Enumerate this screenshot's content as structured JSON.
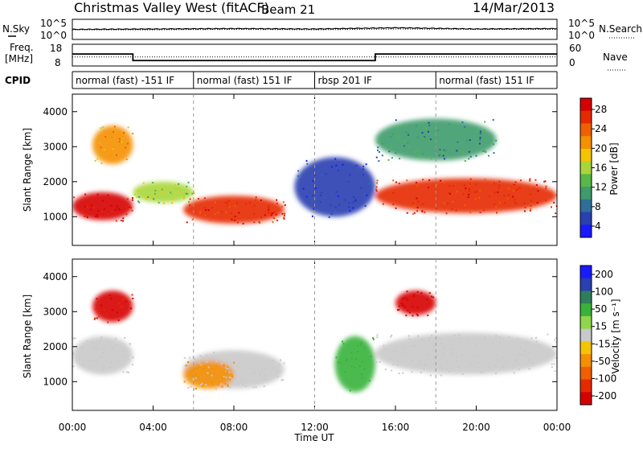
{
  "header": {
    "title": "Christmas Valley West (fitACF)",
    "beam": "Beam 21",
    "date": "14/Mar/2013"
  },
  "colors": {
    "power_scale": [
      "#1a1aff",
      "#2a3fb0",
      "#2e6e9a",
      "#3e9b6b",
      "#57b848",
      "#a8d63a",
      "#f5c400",
      "#f59000",
      "#f06000",
      "#e62a00",
      "#d60000"
    ],
    "velocity_scale": [
      "#1a1aff",
      "#2a3fb0",
      "#2e7e5a",
      "#39b23a",
      "#8fd64a",
      "#c9c9c9",
      "#f5c400",
      "#f59000",
      "#f06000",
      "#e62a00",
      "#d60000"
    ]
  },
  "chart_data": [
    {
      "type": "line",
      "panel": "noise",
      "left_label": "N.Sky",
      "right_label": "N.Search",
      "left_ticks": [
        "10^5",
        "10^0"
      ],
      "right_ticks": [
        "10^5",
        "10^0"
      ],
      "x": [
        "00:00",
        "04:00",
        "08:00",
        "12:00",
        "16:00",
        "20:00",
        "00:00"
      ],
      "series": [
        {
          "name": "N.Sky",
          "values": [
            2.5,
            2.6,
            2.7,
            2.6,
            2.9,
            2.6,
            2.7
          ]
        },
        {
          "name": "N.Search",
          "values": [
            2.4,
            2.4,
            2.5,
            2.4,
            2.6,
            2.5,
            2.5
          ]
        }
      ]
    },
    {
      "type": "line",
      "panel": "frequency",
      "left_label": [
        "Freq.",
        "[MHz]"
      ],
      "right_label": "Nave",
      "left_ticks": [
        "18",
        "8"
      ],
      "right_ticks": [
        "60",
        "0"
      ],
      "freq_steps": [
        {
          "start": "00:00",
          "end": "03:00",
          "value": 13.5
        },
        {
          "start": "03:00",
          "end": "15:00",
          "value": 10.5
        },
        {
          "start": "15:00",
          "end": "24:00",
          "value": 13.5
        }
      ],
      "nave": 25
    },
    {
      "type": "table",
      "panel": "cpid",
      "label": "CPID",
      "segments": [
        {
          "start": "00:00",
          "end": "06:00",
          "label": "normal (fast) -151 IF"
        },
        {
          "start": "06:00",
          "end": "12:00",
          "label": "normal (fast) 151 IF"
        },
        {
          "start": "12:00",
          "end": "18:00",
          "label": "rbsp 201 IF"
        },
        {
          "start": "18:00",
          "end": "24:00",
          "label": "normal (fast) 151 IF"
        }
      ]
    },
    {
      "type": "heatmap",
      "panel": "power",
      "ylabel": "Slant Range [km]",
      "y_ticks": [
        "1000",
        "2000",
        "3000",
        "4000"
      ],
      "ylim": [
        180,
        4500
      ],
      "colorbar_label": "Power [dB]",
      "colorbar_ticks": [
        "4",
        "8",
        "12",
        "16",
        "20",
        "24",
        "28"
      ],
      "blobs": [
        {
          "t0": 0.0,
          "t1": 3.0,
          "r0": 900,
          "r1": 1700,
          "value": 28
        },
        {
          "t0": 1.0,
          "t1": 3.0,
          "r0": 2500,
          "r1": 3600,
          "value": 18
        },
        {
          "t0": 3.0,
          "t1": 6.0,
          "r0": 1400,
          "r1": 2000,
          "value": 14
        },
        {
          "t0": 5.5,
          "t1": 10.5,
          "r0": 800,
          "r1": 1600,
          "value": 26
        },
        {
          "t0": 11.0,
          "t1": 15.0,
          "r0": 1000,
          "r1": 2700,
          "value": 6
        },
        {
          "t0": 15.0,
          "t1": 24.0,
          "r0": 1100,
          "r1": 2100,
          "value": 26
        },
        {
          "t0": 15.0,
          "t1": 21.0,
          "r0": 2600,
          "r1": 3800,
          "value": 10
        }
      ]
    },
    {
      "type": "heatmap",
      "panel": "velocity",
      "ylabel": "Slant Range [km]",
      "y_ticks": [
        "1000",
        "2000",
        "3000",
        "4000"
      ],
      "ylim": [
        180,
        4500
      ],
      "colorbar_label": "Velocity [m s⁻¹]",
      "colorbar_ticks": [
        "200",
        "100",
        "50",
        "15",
        "-15",
        "-50",
        "-100",
        "-200"
      ],
      "xlabel": "Time UT",
      "x_ticks": [
        "00:00",
        "04:00",
        "08:00",
        "12:00",
        "16:00",
        "20:00",
        "00:00"
      ],
      "blobs": [
        {
          "t0": 0.0,
          "t1": 3.0,
          "r0": 1200,
          "r1": 2300,
          "value": 0
        },
        {
          "t0": 1.0,
          "t1": 3.0,
          "r0": 2700,
          "r1": 3600,
          "value": -150
        },
        {
          "t0": 5.5,
          "t1": 10.5,
          "r0": 800,
          "r1": 1900,
          "value": 0
        },
        {
          "t0": 5.5,
          "t1": 8.0,
          "r0": 800,
          "r1": 1600,
          "value": -60
        },
        {
          "t0": 13.0,
          "t1": 15.0,
          "r0": 700,
          "r1": 2300,
          "value": 40
        },
        {
          "t0": 15.0,
          "t1": 24.0,
          "r0": 1200,
          "r1": 2400,
          "value": 0
        },
        {
          "t0": 16.0,
          "t1": 18.0,
          "r0": 2900,
          "r1": 3600,
          "value": -180
        }
      ]
    }
  ]
}
